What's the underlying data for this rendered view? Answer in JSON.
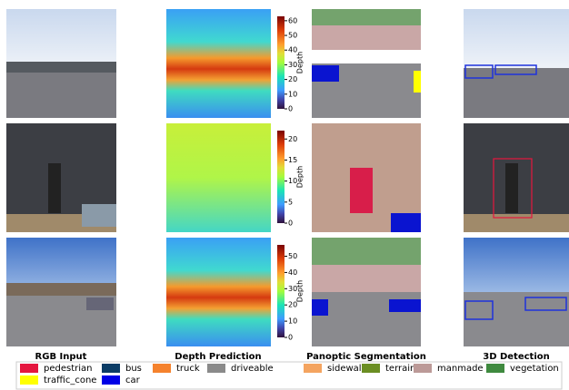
{
  "columns": [
    "RGB Input",
    "Depth Prediction",
    "Panoptic Segmentation",
    "3D Detection"
  ],
  "colorbars": [
    {
      "label": "Depth",
      "lim": [
        0,
        63
      ],
      "ticks": [
        0,
        10,
        20,
        30,
        40,
        50,
        60
      ]
    },
    {
      "label": "Depth",
      "lim": [
        0,
        22
      ],
      "ticks": [
        0,
        5,
        10,
        15,
        20
      ]
    },
    {
      "label": "Depth",
      "lim": [
        0,
        57
      ],
      "ticks": [
        0,
        10,
        20,
        30,
        40,
        50
      ]
    }
  ],
  "legend": [
    {
      "name": "pedestrian",
      "color": "#e5163e"
    },
    {
      "name": "bus",
      "color": "#0b3c66"
    },
    {
      "name": "truck",
      "color": "#f5822d"
    },
    {
      "name": "driveable",
      "color": "#8a8a8a"
    },
    {
      "name": "sidewalk",
      "color": "#f4a460"
    },
    {
      "name": "terrain",
      "color": "#6b8e23"
    },
    {
      "name": "manmade",
      "color": "#bc9a98"
    },
    {
      "name": "vegetation",
      "color": "#3f8a3f"
    },
    {
      "name": "traffic_cone",
      "color": "#ffff00"
    },
    {
      "name": "car",
      "color": "#0000e6"
    }
  ]
}
